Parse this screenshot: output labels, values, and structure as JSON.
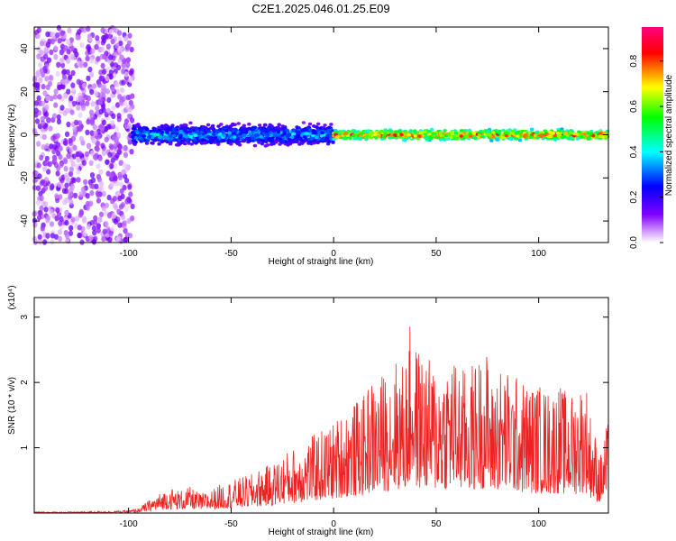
{
  "figure_title": "C2E1.2025.046.01.25.E09",
  "chart_data": [
    {
      "type": "heatmap",
      "xlabel": "Height of straight line (km)",
      "ylabel": "Frequency (Hz)",
      "xlim": [
        -146,
        134
      ],
      "ylim": [
        -50,
        50
      ],
      "x_ticks": [
        -100,
        -50,
        0,
        50,
        100
      ],
      "x_tick_labels": [
        "-100",
        "-50",
        "0",
        "50",
        "100"
      ],
      "y_ticks": [
        -40,
        -20,
        0,
        20,
        40
      ],
      "y_tick_labels": [
        "-40",
        "-20",
        "0",
        "20",
        "40"
      ],
      "colorbar": {
        "label": "Normalized spectral amplitude",
        "range": [
          0.0,
          0.95
        ],
        "ticks": [
          0.0,
          0.2,
          0.4,
          0.6,
          0.8
        ],
        "tick_labels": [
          "0.0",
          "0.2",
          "0.4",
          "0.6",
          "0.8"
        ],
        "colors": [
          "#ffffff",
          "#8000ff",
          "#0000ff",
          "#00ffff",
          "#00ff00",
          "#ffff00",
          "#ff0000",
          "#ff0080"
        ]
      },
      "regions": [
        {
          "x_range": [
            -146,
            -98
          ],
          "y_range": [
            -50,
            50
          ],
          "amplitude_range": [
            0.02,
            0.15
          ],
          "description": "scattered noise"
        },
        {
          "x_range": [
            -98,
            0
          ],
          "y_range": [
            -6,
            6
          ],
          "amplitude_range": [
            0.1,
            0.45
          ]
        },
        {
          "x_range": [
            0,
            134
          ],
          "y_range": [
            -3,
            3
          ],
          "amplitude_range": [
            0.3,
            0.95
          ]
        }
      ],
      "grid": false
    },
    {
      "type": "line",
      "xlabel": "Height of straight line (km)",
      "ylabel": "SNR (10 * v/v)",
      "y_multiplier": "(x10⁴)",
      "xlim": [
        -146,
        134
      ],
      "ylim": [
        0,
        3.3
      ],
      "x_ticks": [
        -100,
        -50,
        0,
        50,
        100
      ],
      "x_tick_labels": [
        "-100",
        "-50",
        "0",
        "50",
        "100"
      ],
      "y_ticks": [
        1,
        2,
        3
      ],
      "y_tick_labels": [
        "1",
        "2",
        "3"
      ],
      "series_color": "#ee2222",
      "series": [
        {
          "x": [
            -146,
            -130,
            -110,
            -100,
            -95,
            -90,
            -85,
            -80,
            -75,
            -70,
            -65,
            -60,
            -55,
            -50,
            -45,
            -40,
            -35,
            -30,
            -25,
            -20,
            -15,
            -10,
            -5,
            0,
            5,
            10,
            15,
            18,
            20,
            25,
            30,
            35,
            38,
            40,
            45,
            50,
            55,
            58,
            60,
            65,
            70,
            75,
            77,
            80,
            85,
            90,
            95,
            100,
            105,
            110,
            115,
            120,
            123,
            125,
            130,
            134
          ],
          "y": [
            0.02,
            0.02,
            0.03,
            0.04,
            0.08,
            0.2,
            0.3,
            0.4,
            0.35,
            0.4,
            0.3,
            0.35,
            0.45,
            0.5,
            0.55,
            0.6,
            0.7,
            0.75,
            0.9,
            1.0,
            1.1,
            1.2,
            1.3,
            1.4,
            1.6,
            1.7,
            1.8,
            2.1,
            2.0,
            2.2,
            2.4,
            2.3,
            3.1,
            2.6,
            2.4,
            2.3,
            2.4,
            2.5,
            2.3,
            2.2,
            2.4,
            2.5,
            2.0,
            2.3,
            2.2,
            2.1,
            2.0,
            2.0,
            1.9,
            2.0,
            1.8,
            2.0,
            2.1,
            1.6,
            0.9,
            1.45
          ]
        }
      ],
      "grid": false
    }
  ]
}
